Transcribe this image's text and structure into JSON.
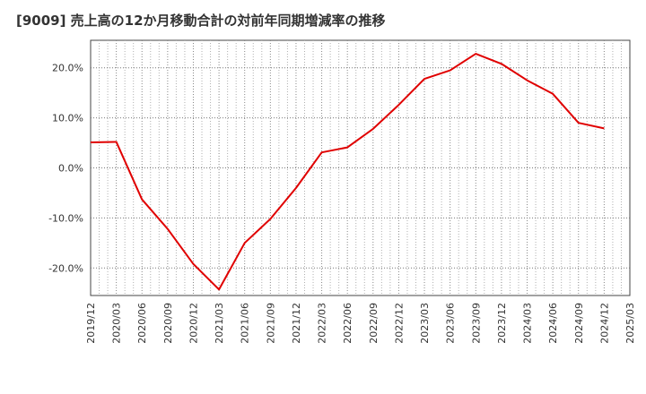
{
  "chart_data": {
    "type": "line",
    "title": "[9009]  売上高の12か月移動合計の対前年同期増減率の推移",
    "xlabel": "",
    "ylabel": "",
    "ylim": [
      -25.5,
      25.5
    ],
    "yticks": [
      20,
      10,
      0,
      -10,
      -20
    ],
    "ytick_labels": [
      "20.0%",
      "10.0%",
      "0.0%",
      "-10.0%",
      "-20.0%"
    ],
    "categories": [
      "2019/12",
      "2020/03",
      "2020/06",
      "2020/09",
      "2020/12",
      "2021/03",
      "2021/06",
      "2021/09",
      "2021/12",
      "2022/03",
      "2022/06",
      "2022/09",
      "2022/12",
      "2023/03",
      "2023/06",
      "2023/09",
      "2023/12",
      "2024/03",
      "2024/06",
      "2024/09",
      "2024/12",
      "2025/03"
    ],
    "series": [
      {
        "name": "増減率",
        "color": "#e00000",
        "values": [
          5.1,
          5.2,
          -6.3,
          -12.2,
          -19.2,
          -24.3,
          -15.0,
          -10.2,
          -4.0,
          3.1,
          4.1,
          7.8,
          12.6,
          17.8,
          19.5,
          22.8,
          20.8,
          17.5,
          14.8,
          9.0,
          7.9,
          null
        ]
      }
    ]
  }
}
